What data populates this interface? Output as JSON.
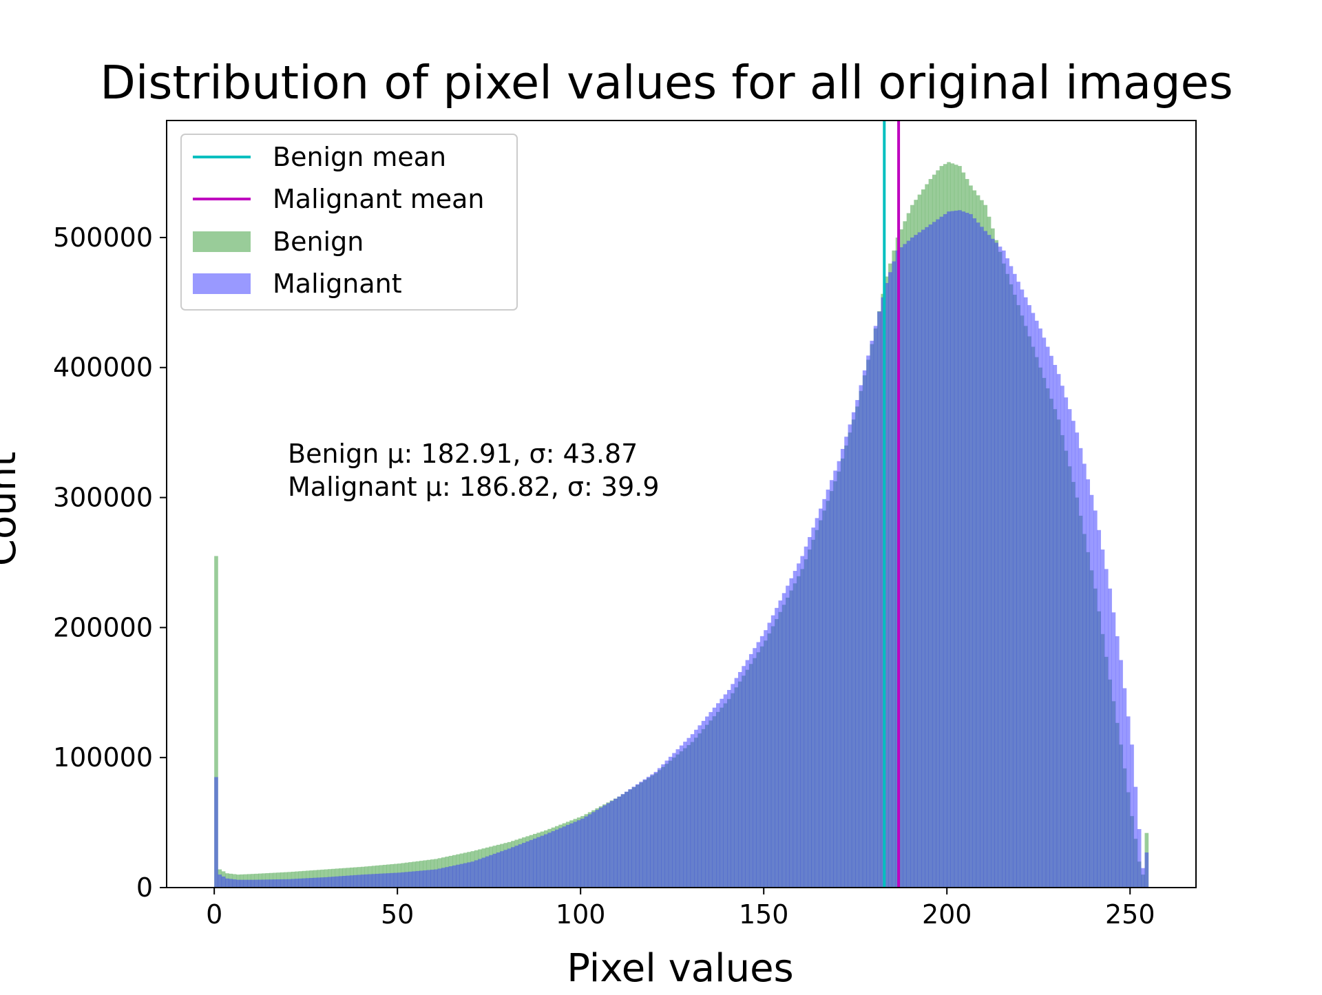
{
  "chart_data": {
    "type": "bar",
    "title": "Distribution of pixel values for all original images",
    "xlabel": "Pixel values",
    "ylabel": "Count",
    "xlim": [
      -13,
      268
    ],
    "ylim": [
      0,
      590000
    ],
    "xticks": [
      0,
      50,
      100,
      150,
      200,
      250
    ],
    "yticks": [
      0,
      100000,
      200000,
      300000,
      400000,
      500000
    ],
    "grid": false,
    "legend_position": "top-left",
    "colors": {
      "benign_fill": "#99cc99",
      "malignant_fill": "#9999ff",
      "overlap_fill": "#5e7bc2",
      "benign_mean_line": "#00bfbf",
      "malignant_mean_line": "#bf00bf"
    },
    "legend": [
      {
        "label": "Benign mean",
        "kind": "line",
        "color": "#00bfbf"
      },
      {
        "label": "Malignant mean",
        "kind": "line",
        "color": "#bf00bf"
      },
      {
        "label": "Benign",
        "kind": "patch",
        "color": "#99cc99"
      },
      {
        "label": "Malignant",
        "kind": "patch",
        "color": "#9999ff"
      }
    ],
    "annotation": [
      "Benign μ: 182.91, σ: 43.87",
      "Malignant μ: 186.82, σ: 39.9"
    ],
    "vlines": [
      {
        "name": "Benign mean",
        "x": 182.91,
        "color": "#00bfbf"
      },
      {
        "name": "Malignant mean",
        "x": 186.82,
        "color": "#bf00bf"
      }
    ],
    "bins": {
      "start": 0,
      "end": 256,
      "width": 1
    },
    "series": [
      {
        "name": "Benign",
        "color": "#99cc99",
        "anchors": [
          [
            0,
            255000
          ],
          [
            1,
            14000
          ],
          [
            3,
            11000
          ],
          [
            6,
            10000
          ],
          [
            10,
            10500
          ],
          [
            20,
            12000
          ],
          [
            30,
            14000
          ],
          [
            40,
            16000
          ],
          [
            50,
            18500
          ],
          [
            60,
            22000
          ],
          [
            70,
            28000
          ],
          [
            80,
            35000
          ],
          [
            90,
            44000
          ],
          [
            100,
            55000
          ],
          [
            110,
            70000
          ],
          [
            120,
            88000
          ],
          [
            130,
            112000
          ],
          [
            140,
            145000
          ],
          [
            150,
            190000
          ],
          [
            160,
            245000
          ],
          [
            170,
            320000
          ],
          [
            175,
            370000
          ],
          [
            180,
            430000
          ],
          [
            183,
            470000
          ],
          [
            186,
            500000
          ],
          [
            190,
            525000
          ],
          [
            195,
            545000
          ],
          [
            198,
            555000
          ],
          [
            200,
            558000
          ],
          [
            203,
            555000
          ],
          [
            206,
            540000
          ],
          [
            210,
            525000
          ],
          [
            215,
            480000
          ],
          [
            220,
            440000
          ],
          [
            225,
            400000
          ],
          [
            230,
            360000
          ],
          [
            235,
            300000
          ],
          [
            240,
            230000
          ],
          [
            244,
            160000
          ],
          [
            247,
            110000
          ],
          [
            250,
            55000
          ],
          [
            252,
            20000
          ],
          [
            253,
            10000
          ],
          [
            254,
            42000
          ],
          [
            255,
            0
          ]
        ]
      },
      {
        "name": "Malignant",
        "color": "#9999ff",
        "anchors": [
          [
            0,
            85000
          ],
          [
            1,
            10000
          ],
          [
            3,
            7000
          ],
          [
            6,
            6000
          ],
          [
            10,
            6000
          ],
          [
            20,
            6500
          ],
          [
            30,
            8000
          ],
          [
            40,
            10000
          ],
          [
            50,
            11500
          ],
          [
            60,
            14000
          ],
          [
            70,
            20000
          ],
          [
            80,
            30000
          ],
          [
            90,
            41000
          ],
          [
            100,
            53000
          ],
          [
            110,
            70000
          ],
          [
            120,
            89000
          ],
          [
            130,
            118000
          ],
          [
            140,
            152000
          ],
          [
            150,
            198000
          ],
          [
            160,
            255000
          ],
          [
            170,
            328000
          ],
          [
            175,
            375000
          ],
          [
            180,
            432000
          ],
          [
            183,
            465000
          ],
          [
            186,
            490000
          ],
          [
            190,
            500000
          ],
          [
            195,
            510000
          ],
          [
            200,
            520000
          ],
          [
            203,
            521000
          ],
          [
            206,
            518000
          ],
          [
            210,
            505000
          ],
          [
            215,
            490000
          ],
          [
            220,
            460000
          ],
          [
            225,
            430000
          ],
          [
            230,
            395000
          ],
          [
            235,
            350000
          ],
          [
            240,
            290000
          ],
          [
            244,
            230000
          ],
          [
            247,
            175000
          ],
          [
            250,
            110000
          ],
          [
            252,
            45000
          ],
          [
            253,
            15000
          ],
          [
            254,
            27000
          ],
          [
            255,
            0
          ]
        ]
      }
    ]
  }
}
